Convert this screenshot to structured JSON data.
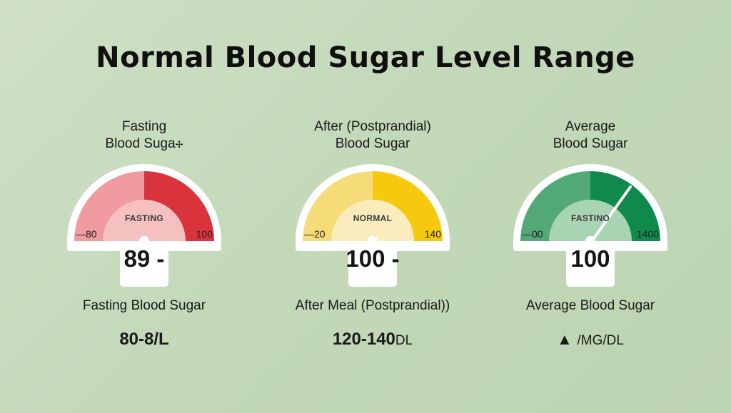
{
  "title": "Normal Blood Sugar Level Range",
  "cards": [
    {
      "heading_line1": "Fasting",
      "heading_line2": "Blood Suga",
      "center_label": "FASTING",
      "tick_left": "—80",
      "tick_right": "100",
      "reading": "89 -",
      "label": "Fasting Blood Sugar",
      "range": "80-8/L",
      "colors": {
        "light": "#f19aa0",
        "dark": "#d9333c",
        "inner": "#f5c1c0"
      }
    },
    {
      "heading_line1": "After (Postprandial)",
      "heading_line2": "Blood Sugar",
      "center_label": "NORMAL",
      "tick_left": "—20",
      "tick_right": "140",
      "reading": "100 -",
      "label": "After Meal (Postprandial))",
      "range": "120-140",
      "range_unit": "DL",
      "colors": {
        "light": "#f6dc78",
        "dark": "#f6c90f",
        "inner": "#faecbc"
      }
    },
    {
      "heading_line1": "Average",
      "heading_line2": "Blood Sugar",
      "center_label": "FASTINO",
      "tick_left": "—00",
      "tick_right": "1400",
      "reading": "100",
      "label": "Average Blood Sugar",
      "range_symbol": "▲",
      "range_unit": "/MG/DL",
      "colors": {
        "light": "#52a977",
        "dark": "#0f8a4c",
        "inner": "#a8d4b4"
      }
    }
  ]
}
